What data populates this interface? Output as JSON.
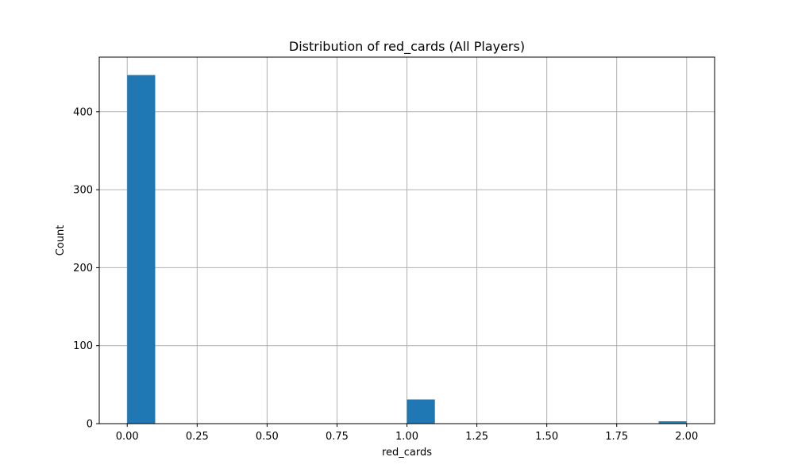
{
  "chart_data": {
    "type": "bar",
    "title": "Distribution of red_cards (All Players)",
    "xlabel": "red_cards",
    "ylabel": "Count",
    "xlim": [
      -0.1,
      2.1
    ],
    "ylim": [
      0,
      470
    ],
    "xticks": [
      0.0,
      0.25,
      0.5,
      0.75,
      1.0,
      1.25,
      1.5,
      1.75,
      2.0
    ],
    "xtick_labels": [
      "0.00",
      "0.25",
      "0.50",
      "0.75",
      "1.00",
      "1.25",
      "1.50",
      "1.75",
      "2.00"
    ],
    "yticks": [
      0,
      100,
      200,
      300,
      400
    ],
    "ytick_labels": [
      "0",
      "100",
      "200",
      "300",
      "400"
    ],
    "grid": true,
    "bins": [
      {
        "start": 0.0,
        "end": 0.1,
        "count": 447
      },
      {
        "start": 1.0,
        "end": 1.1,
        "count": 31
      },
      {
        "start": 1.9,
        "end": 2.0,
        "count": 3
      }
    ],
    "bar_color": "#1f77b4"
  }
}
